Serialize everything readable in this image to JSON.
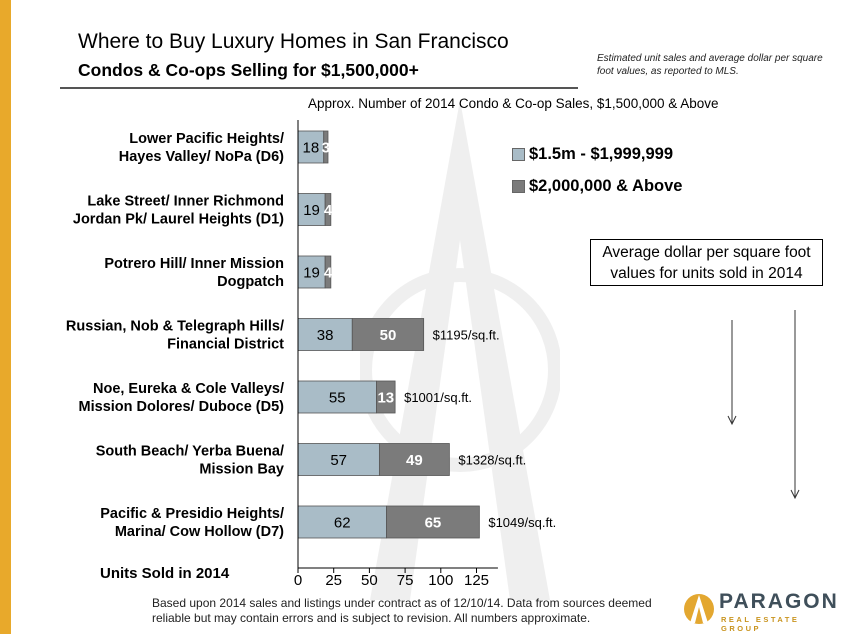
{
  "header": {
    "title": "Where to Buy Luxury Homes in San Francisco",
    "subtitle": "Condos & Co-ops Selling for $1,500,000+",
    "note": "Estimated unit sales and average dollar per square foot values, as reported to MLS."
  },
  "psf_box": {
    "line1": "Average dollar per square foot",
    "line2": "values for units sold in 2014"
  },
  "footer": {
    "text": "Based upon 2014 sales and listings under contract as of 12/10/14. Data from sources deemed reliable but may contain errors and is subject to revision. All numbers approximate."
  },
  "logo": {
    "name": "PARAGON",
    "tagline": "REAL ESTATE GROUP"
  },
  "colors": {
    "accent_bar": "#e8a92b",
    "series_low": "#a9bcc7",
    "series_high": "#7b7b7b"
  },
  "chart_data": {
    "type": "bar",
    "orientation": "horizontal",
    "stacked": true,
    "title": "Approx. Number of 2014 Condo & Co-op Sales, $1,500,000 & Above",
    "xlabel": "Units Sold in 2014",
    "xlim": [
      0,
      140
    ],
    "xticks": [
      "0",
      "25",
      "50",
      "75",
      "100",
      "125"
    ],
    "tick_values": [
      0,
      25,
      50,
      75,
      100,
      125
    ],
    "grid": false,
    "legend_position": "top-right",
    "categories": [
      [
        "Lower Pacific Heights/",
        "Hayes Valley/ NoPa (D6)"
      ],
      [
        "Lake Street/ Inner Richmond",
        "Jordan Pk/ Laurel Heights (D1)"
      ],
      [
        "Potrero Hill/ Inner Mission",
        "Dogpatch"
      ],
      [
        "Russian, Nob & Telegraph Hills/",
        "Financial District"
      ],
      [
        "Noe, Eureka & Cole Valleys/",
        "Mission Dolores/ Duboce  (D5)"
      ],
      [
        "South Beach/ Yerba Buena/",
        "Mission Bay"
      ],
      [
        "Pacific & Presidio Heights/",
        "Marina/ Cow Hollow (D7)"
      ]
    ],
    "series": [
      {
        "name": "$1.5m - $1,999,999",
        "values": [
          18,
          19,
          19,
          38,
          55,
          57,
          62
        ]
      },
      {
        "name": "$2,000,000 & Above",
        "values": [
          3,
          4,
          4,
          50,
          13,
          49,
          65
        ]
      }
    ],
    "annotations": [
      "",
      "",
      "",
      "$1195/sq.ft.",
      "$1001/sq.ft.",
      "$1328/sq.ft.",
      "$1049/sq.ft."
    ]
  }
}
